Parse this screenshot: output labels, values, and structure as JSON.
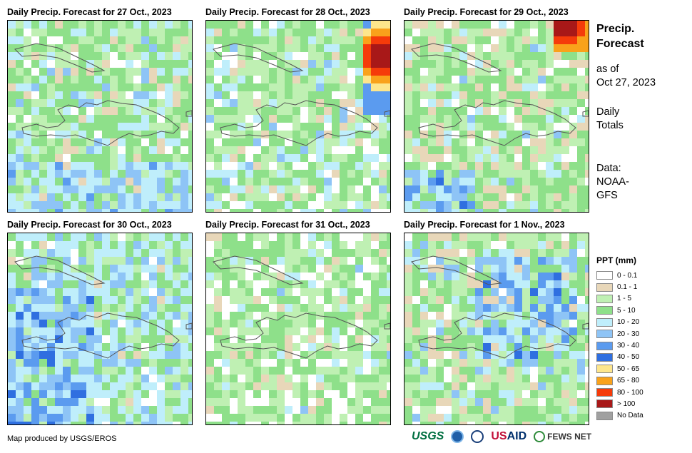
{
  "panels": [
    {
      "title": "Daily Precip. Forecast for 27 Oct., 2023",
      "dominant_class": "5 - 10"
    },
    {
      "title": "Daily Precip. Forecast for 28 Oct., 2023",
      "dominant_class": "5 - 10"
    },
    {
      "title": "Daily Precip. Forecast for 29 Oct., 2023",
      "dominant_class": "5 - 10"
    },
    {
      "title": "Daily Precip. Forecast for 30 Oct., 2023",
      "dominant_class": "10 - 20"
    },
    {
      "title": "Daily Precip. Forecast for 31 Oct., 2023",
      "dominant_class": "5 - 10"
    },
    {
      "title": "Daily Precip. Forecast for 1 Nov., 2023",
      "dominant_class": "5 - 10"
    }
  ],
  "side": {
    "heading_line1": "Precip.",
    "heading_line2": "Forecast",
    "asof_line1": "as of",
    "asof_line2": "Oct 27, 2023",
    "daily_line1": "Daily",
    "daily_line2": "Totals",
    "data_line1": "Data:",
    "data_line2": "NOAA-",
    "data_line3": "GFS"
  },
  "legend": {
    "title": "PPT (mm)",
    "items": [
      {
        "label": "0 - 0.1",
        "color": "#ffffff"
      },
      {
        "label": "0.1 - 1",
        "color": "#e8d7b9"
      },
      {
        "label": "1 - 5",
        "color": "#bff0b3"
      },
      {
        "label": "5 - 10",
        "color": "#8ee08a"
      },
      {
        "label": "10 - 20",
        "color": "#bfeefb"
      },
      {
        "label": "20 - 30",
        "color": "#8ec4f6"
      },
      {
        "label": "30 - 40",
        "color": "#5b9bef"
      },
      {
        "label": "40 - 50",
        "color": "#2f6fe0"
      },
      {
        "label": "50 - 65",
        "color": "#fde68c"
      },
      {
        "label": "65 - 80",
        "color": "#f9a21b"
      },
      {
        "label": "80 - 100",
        "color": "#f53b0a"
      },
      {
        "label": "> 100",
        "color": "#a81818"
      },
      {
        "label": "No Data",
        "color": "#a0a0a0"
      }
    ]
  },
  "footer": {
    "credit": "Map produced by USGS/EROS"
  },
  "logos": {
    "usgs": "USGS",
    "usaid_us": "US",
    "usaid_aid": "AID",
    "fews": "FEWS NET"
  }
}
